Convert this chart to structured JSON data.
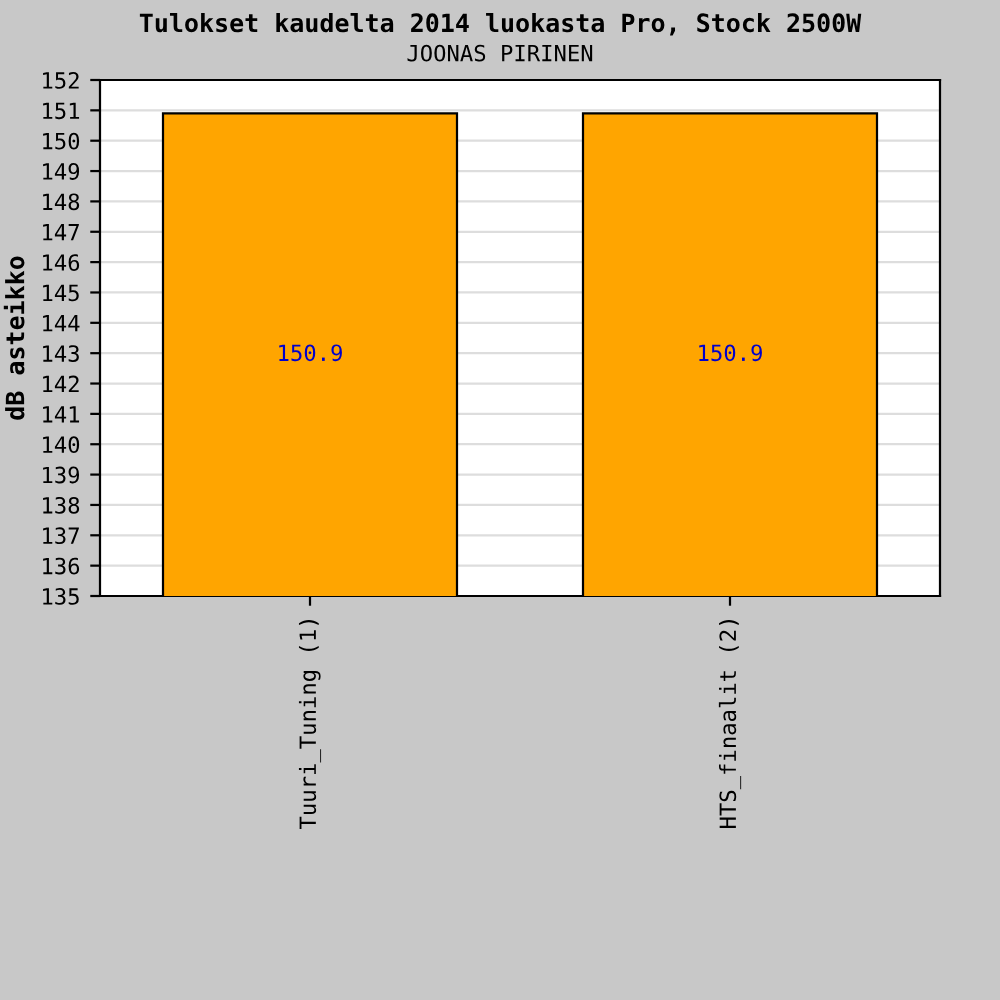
{
  "chart_data": {
    "type": "bar",
    "title": "Tulokset kaudelta 2014 luokasta Pro, Stock 2500W",
    "subtitle": "JOONAS PIRINEN",
    "ylabel": "dB asteikko",
    "categories": [
      "Tuuri_Tuning (1)",
      "HTS_finaalit (2)"
    ],
    "values": [
      150.9,
      150.9
    ],
    "color": "#ffa500",
    "ylim": [
      135,
      152
    ],
    "yticks": [
      135,
      136,
      137,
      138,
      139,
      140,
      141,
      142,
      143,
      144,
      145,
      146,
      147,
      148,
      149,
      150,
      151,
      152
    ],
    "grid": "y",
    "data_labels": true
  }
}
